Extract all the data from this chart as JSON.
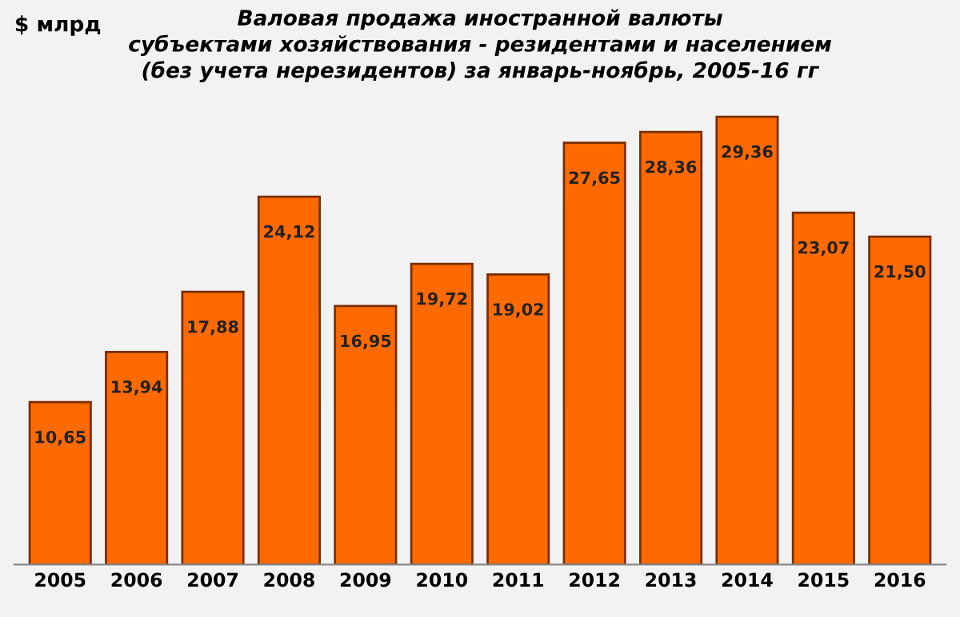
{
  "chart_data": {
    "type": "bar",
    "title": "Валовая продажа иностранной валюты\nсубъектами хозяйствования - резидентами и населением\n(без учета нерезидентов) за январь-ноябрь, 2005-16 гг",
    "ylabel": "$ млрд",
    "categories": [
      "2005",
      "2006",
      "2007",
      "2008",
      "2009",
      "2010",
      "2011",
      "2012",
      "2013",
      "2014",
      "2015",
      "2016"
    ],
    "values": [
      10.65,
      13.94,
      17.88,
      24.12,
      16.95,
      19.72,
      19.02,
      27.65,
      28.36,
      29.36,
      23.07,
      21.5
    ],
    "value_labels": [
      "10,65",
      "13,94",
      "17,88",
      "24,12",
      "16,95",
      "19,72",
      "19,02",
      "27,65",
      "28,36",
      "29,36",
      "23,07",
      "21,50"
    ],
    "color": "#ff6a00",
    "grid": false,
    "tick_labels": "x"
  }
}
